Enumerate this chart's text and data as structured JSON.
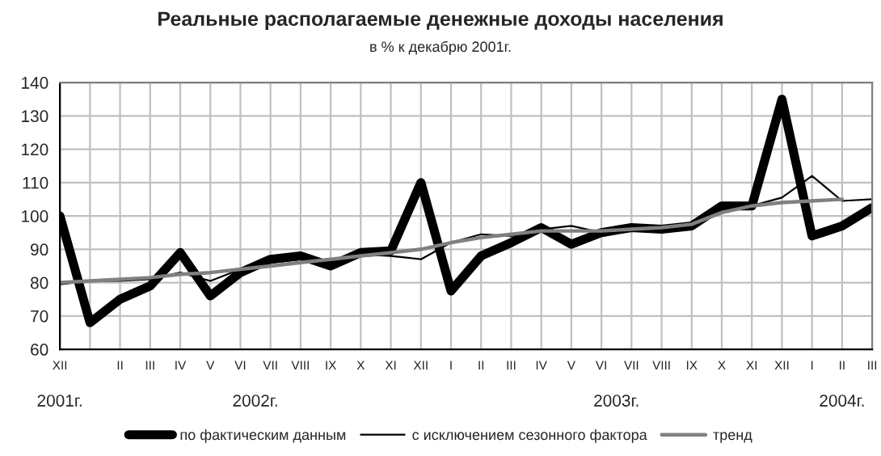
{
  "chart_data": {
    "type": "line",
    "title": "Реальные располагаемые денежные доходы населения",
    "subtitle": "в % к декабрю 2001г.",
    "categories": [
      "XII",
      null,
      "II",
      "III",
      "IV",
      "V",
      "VI",
      "VII",
      "VIII",
      "IX",
      "X",
      "XI",
      "XII",
      "I",
      "II",
      "III",
      "IV",
      "V",
      "VI",
      "VII",
      "VIII",
      "IX",
      "X",
      "XI",
      "XII",
      "I",
      "II",
      "III"
    ],
    "annotations": [
      "2001г.",
      "2002г.",
      "2003г.",
      "2004г."
    ],
    "series": [
      {
        "name": "по фактическим данным",
        "color": "#000000",
        "values": [
          100,
          68,
          75,
          79,
          89,
          76,
          83,
          87,
          88,
          85,
          89,
          89.5,
          110,
          77.5,
          88,
          92,
          96.5,
          91.5,
          95,
          96.5,
          96,
          97,
          103,
          103,
          135,
          94,
          97,
          102.5
        ]
      },
      {
        "name": "с исключением сезонного фактора",
        "color": "#000000",
        "values": [
          79.5,
          80.5,
          80.5,
          81,
          83,
          80.5,
          84,
          86,
          87,
          86.5,
          88.5,
          88,
          87,
          92,
          94.5,
          94,
          96,
          97,
          95,
          96.5,
          96.5,
          97.5,
          102,
          103,
          105.5,
          112,
          104.5,
          105
        ]
      },
      {
        "name": "тренд",
        "color": "#808080",
        "values": [
          80,
          80.5,
          81,
          81.5,
          82.5,
          83,
          84,
          85,
          86,
          87,
          88,
          89,
          90,
          92,
          93.5,
          94.5,
          95.5,
          95.5,
          95.5,
          96,
          96.5,
          97.5,
          101,
          103,
          104,
          104.5,
          105,
          null
        ]
      }
    ],
    "ylim": [
      60,
      140
    ],
    "yticks": [
      60,
      70,
      80,
      90,
      100,
      110,
      120,
      130,
      140
    ],
    "grid": true,
    "legend": "bottom",
    "marker": "none",
    "line_style": "solid"
  }
}
